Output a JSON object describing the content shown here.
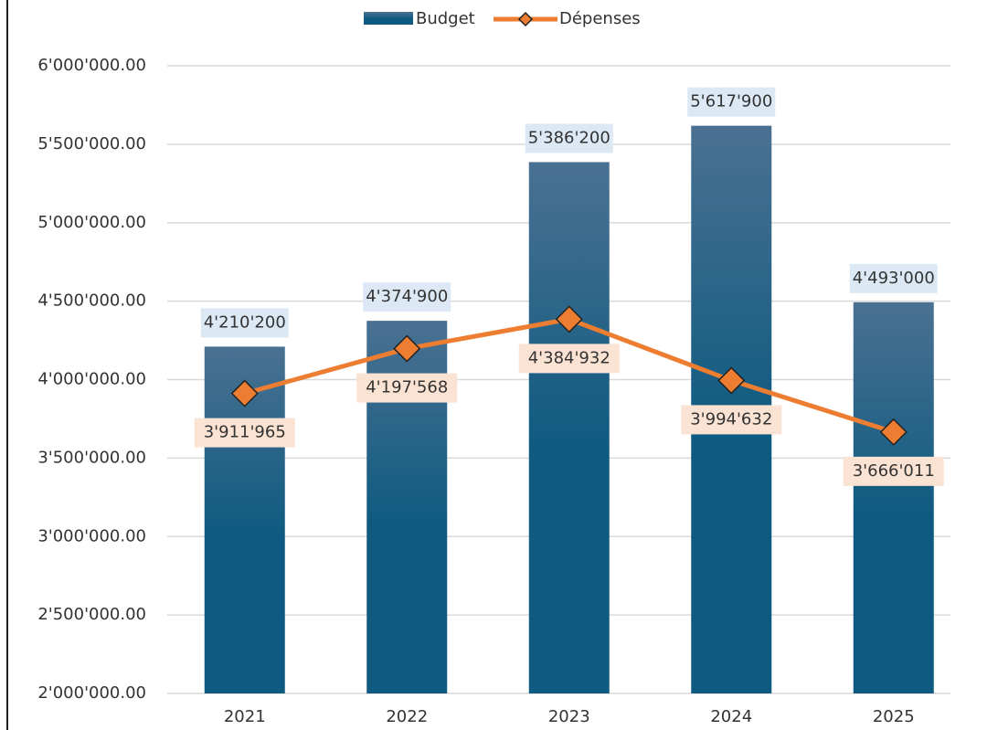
{
  "chart_data": {
    "type": "bar_line",
    "categories": [
      "2021",
      "2022",
      "2023",
      "2024",
      "2025"
    ],
    "series": [
      {
        "name": "Budget",
        "color": "#0e5a80",
        "type": "bar",
        "values": [
          4210200,
          4374900,
          5386200,
          5617900,
          4493000
        ],
        "value_labels": [
          "4'210'200",
          "4'374'900",
          "5'386'200",
          "5'617'900",
          "4'493'000"
        ]
      },
      {
        "name": "Dépenses",
        "color": "#ed7d31",
        "type": "line",
        "values": [
          3911965,
          4197568,
          4384932,
          3994632,
          3666011
        ],
        "value_labels": [
          "3'911'965",
          "4'197'568",
          "4'384'932",
          "3'994'632",
          "3'666'011"
        ]
      }
    ],
    "ylim": [
      2000000,
      6000000
    ],
    "yticks": [
      {
        "value": 2000000,
        "label": "2'000'000.00"
      },
      {
        "value": 2500000,
        "label": "2'500'000.00"
      },
      {
        "value": 3000000,
        "label": "3'000'000.00"
      },
      {
        "value": 3500000,
        "label": "3'500'000.00"
      },
      {
        "value": 4000000,
        "label": "4'000'000.00"
      },
      {
        "value": 4500000,
        "label": "4'500'000.00"
      },
      {
        "value": 5000000,
        "label": "5'000'000.00"
      },
      {
        "value": 5500000,
        "label": "5'500'000.00"
      },
      {
        "value": 6000000,
        "label": "6'000'000.00"
      }
    ],
    "grid": true,
    "legend": "top"
  }
}
